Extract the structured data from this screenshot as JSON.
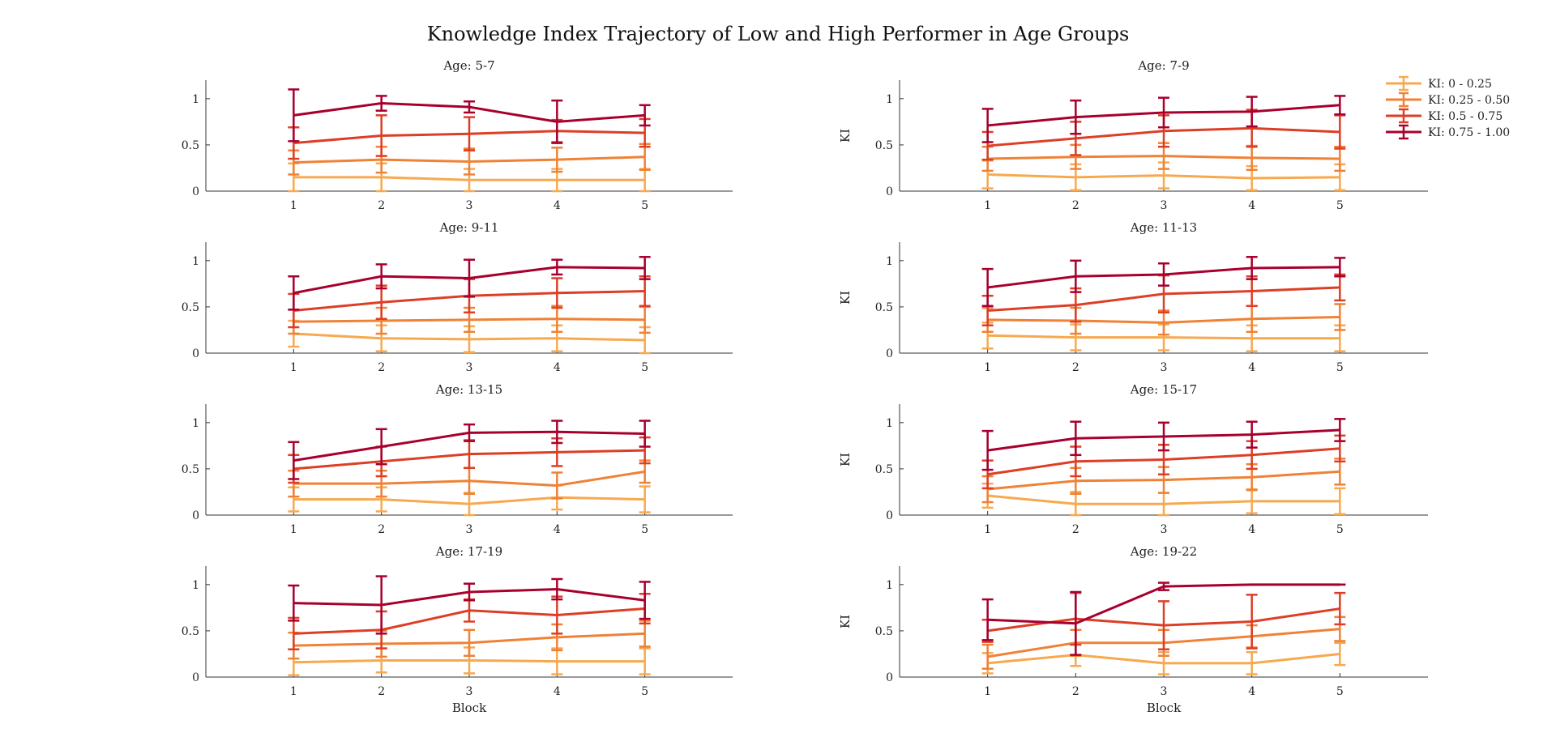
{
  "title": "Knowledge Index Trajectory of Low and High Performer in Age Groups",
  "legend": [
    {
      "label": "KI: 0 - 0.25",
      "color": "#F7A94F"
    },
    {
      "label": "KI: 0.25 - 0.50",
      "color": "#EF8236"
    },
    {
      "label": "KI: 0.5 - 0.75",
      "color": "#DC3F26"
    },
    {
      "label": "KI: 0.75 - 1.00",
      "color": "#A8002E"
    }
  ],
  "chart_data": [
    {
      "type": "line",
      "title": "Age: 5-7",
      "xlabel": "",
      "ylabel": "",
      "x": [
        1,
        2,
        3,
        4,
        5
      ],
      "xlim": [
        0,
        6
      ],
      "ylim": [
        0,
        1.2
      ],
      "yticks": [
        0,
        0.5,
        1
      ],
      "series": [
        {
          "name": "KI: 0 - 0.25",
          "values": [
            0.15,
            0.15,
            0.12,
            0.12,
            0.12
          ],
          "errors": [
            0.15,
            0.15,
            0.12,
            0.12,
            0.12
          ]
        },
        {
          "name": "KI: 0.25 - 0.50",
          "values": [
            0.31,
            0.34,
            0.32,
            0.34,
            0.37
          ],
          "errors": [
            0.13,
            0.14,
            0.14,
            0.13,
            0.14
          ]
        },
        {
          "name": "KI: 0.5 - 0.75",
          "values": [
            0.52,
            0.6,
            0.62,
            0.65,
            0.63
          ],
          "errors": [
            0.17,
            0.22,
            0.18,
            0.12,
            0.15
          ]
        },
        {
          "name": "KI: 0.75 - 1.00",
          "values": [
            0.82,
            0.95,
            0.91,
            0.75,
            0.82
          ],
          "errors": [
            0.28,
            0.08,
            0.06,
            0.23,
            0.11
          ]
        }
      ]
    },
    {
      "type": "line",
      "title": "Age: 7-9",
      "xlabel": "",
      "ylabel": "KI",
      "x": [
        1,
        2,
        3,
        4,
        5
      ],
      "xlim": [
        0,
        6
      ],
      "ylim": [
        0,
        1.2
      ],
      "yticks": [
        0,
        0.5,
        1
      ],
      "series": [
        {
          "name": "KI: 0 - 0.25",
          "values": [
            0.18,
            0.15,
            0.17,
            0.14,
            0.15
          ],
          "errors": [
            0.15,
            0.14,
            0.14,
            0.13,
            0.14
          ]
        },
        {
          "name": "KI: 0.25 - 0.50",
          "values": [
            0.35,
            0.37,
            0.38,
            0.36,
            0.35
          ],
          "errors": [
            0.13,
            0.13,
            0.14,
            0.13,
            0.13
          ]
        },
        {
          "name": "KI: 0.5 - 0.75",
          "values": [
            0.49,
            0.57,
            0.65,
            0.68,
            0.64
          ],
          "errors": [
            0.15,
            0.18,
            0.17,
            0.2,
            0.18
          ]
        },
        {
          "name": "KI: 0.75 - 1.00",
          "values": [
            0.71,
            0.8,
            0.85,
            0.86,
            0.93
          ],
          "errors": [
            0.18,
            0.18,
            0.16,
            0.16,
            0.1
          ]
        }
      ]
    },
    {
      "type": "line",
      "title": "Age: 9-11",
      "xlabel": "",
      "ylabel": "",
      "x": [
        1,
        2,
        3,
        4,
        5
      ],
      "xlim": [
        0,
        6
      ],
      "ylim": [
        0,
        1.2
      ],
      "yticks": [
        0,
        0.5,
        1
      ],
      "series": [
        {
          "name": "KI: 0 - 0.25",
          "values": [
            0.21,
            0.16,
            0.15,
            0.16,
            0.14
          ],
          "errors": [
            0.14,
            0.14,
            0.14,
            0.14,
            0.14
          ]
        },
        {
          "name": "KI: 0.25 - 0.50",
          "values": [
            0.34,
            0.35,
            0.36,
            0.37,
            0.36
          ],
          "errors": [
            0.13,
            0.14,
            0.13,
            0.14,
            0.14
          ]
        },
        {
          "name": "KI: 0.5 - 0.75",
          "values": [
            0.46,
            0.55,
            0.62,
            0.65,
            0.67
          ],
          "errors": [
            0.18,
            0.18,
            0.18,
            0.16,
            0.16
          ]
        },
        {
          "name": "KI: 0.75 - 1.00",
          "values": [
            0.65,
            0.83,
            0.81,
            0.93,
            0.92
          ],
          "errors": [
            0.18,
            0.13,
            0.2,
            0.08,
            0.12
          ]
        }
      ]
    },
    {
      "type": "line",
      "title": "Age: 11-13",
      "xlabel": "",
      "ylabel": "KI",
      "x": [
        1,
        2,
        3,
        4,
        5
      ],
      "xlim": [
        0,
        6
      ],
      "ylim": [
        0,
        1.2
      ],
      "yticks": [
        0,
        0.5,
        1
      ],
      "series": [
        {
          "name": "KI: 0 - 0.25",
          "values": [
            0.19,
            0.17,
            0.17,
            0.16,
            0.16
          ],
          "errors": [
            0.14,
            0.14,
            0.14,
            0.14,
            0.14
          ]
        },
        {
          "name": "KI: 0.25 - 0.50",
          "values": [
            0.36,
            0.35,
            0.33,
            0.37,
            0.39
          ],
          "errors": [
            0.13,
            0.14,
            0.13,
            0.14,
            0.14
          ]
        },
        {
          "name": "KI: 0.5 - 0.75",
          "values": [
            0.46,
            0.52,
            0.64,
            0.67,
            0.71
          ],
          "errors": [
            0.16,
            0.18,
            0.2,
            0.16,
            0.14
          ]
        },
        {
          "name": "KI: 0.75 - 1.00",
          "values": [
            0.71,
            0.83,
            0.85,
            0.92,
            0.93
          ],
          "errors": [
            0.2,
            0.17,
            0.12,
            0.12,
            0.1
          ]
        }
      ]
    },
    {
      "type": "line",
      "title": "Age: 13-15",
      "xlabel": "",
      "ylabel": "",
      "x": [
        1,
        2,
        3,
        4,
        5
      ],
      "xlim": [
        0,
        6
      ],
      "ylim": [
        0,
        1.2
      ],
      "yticks": [
        0,
        0.5,
        1
      ],
      "series": [
        {
          "name": "KI: 0 - 0.25",
          "values": [
            0.17,
            0.17,
            0.12,
            0.19,
            0.17
          ],
          "errors": [
            0.13,
            0.13,
            0.12,
            0.13,
            0.14
          ]
        },
        {
          "name": "KI: 0.25 - 0.50",
          "values": [
            0.34,
            0.34,
            0.37,
            0.32,
            0.47
          ],
          "errors": [
            0.14,
            0.14,
            0.14,
            0.14,
            0.12
          ]
        },
        {
          "name": "KI: 0.5 - 0.75",
          "values": [
            0.5,
            0.58,
            0.66,
            0.68,
            0.7
          ],
          "errors": [
            0.15,
            0.16,
            0.15,
            0.15,
            0.14
          ]
        },
        {
          "name": "KI: 0.75 - 1.00",
          "values": [
            0.59,
            0.74,
            0.89,
            0.9,
            0.88
          ],
          "errors": [
            0.2,
            0.19,
            0.09,
            0.12,
            0.14
          ]
        }
      ]
    },
    {
      "type": "line",
      "title": "Age: 15-17",
      "xlabel": "",
      "ylabel": "KI",
      "x": [
        1,
        2,
        3,
        4,
        5
      ],
      "xlim": [
        0,
        6
      ],
      "ylim": [
        0,
        1.2
      ],
      "yticks": [
        0,
        0.5,
        1
      ],
      "series": [
        {
          "name": "KI: 0 - 0.25",
          "values": [
            0.21,
            0.12,
            0.12,
            0.15,
            0.15
          ],
          "errors": [
            0.13,
            0.13,
            0.12,
            0.13,
            0.14
          ]
        },
        {
          "name": "KI: 0.25 - 0.50",
          "values": [
            0.28,
            0.37,
            0.38,
            0.41,
            0.47
          ],
          "errors": [
            0.14,
            0.14,
            0.14,
            0.14,
            0.14
          ]
        },
        {
          "name": "KI: 0.5 - 0.75",
          "values": [
            0.44,
            0.58,
            0.6,
            0.65,
            0.72
          ],
          "errors": [
            0.15,
            0.16,
            0.16,
            0.15,
            0.14
          ]
        },
        {
          "name": "KI: 0.75 - 1.00",
          "values": [
            0.7,
            0.83,
            0.85,
            0.87,
            0.92
          ],
          "errors": [
            0.21,
            0.18,
            0.15,
            0.14,
            0.12
          ]
        }
      ]
    },
    {
      "type": "line",
      "title": "Age: 17-19",
      "xlabel": "Block",
      "ylabel": "",
      "x": [
        1,
        2,
        3,
        4,
        5
      ],
      "xlim": [
        0,
        6
      ],
      "ylim": [
        0,
        1.2
      ],
      "yticks": [
        0,
        0.5,
        1
      ],
      "series": [
        {
          "name": "KI: 0 - 0.25",
          "values": [
            0.16,
            0.18,
            0.18,
            0.17,
            0.17
          ],
          "errors": [
            0.14,
            0.13,
            0.14,
            0.14,
            0.14
          ]
        },
        {
          "name": "KI: 0.25 - 0.50",
          "values": [
            0.34,
            0.36,
            0.37,
            0.43,
            0.47
          ],
          "errors": [
            0.14,
            0.14,
            0.14,
            0.14,
            0.14
          ]
        },
        {
          "name": "KI: 0.5 - 0.75",
          "values": [
            0.47,
            0.51,
            0.72,
            0.67,
            0.74
          ],
          "errors": [
            0.17,
            0.2,
            0.12,
            0.2,
            0.16
          ]
        },
        {
          "name": "KI: 0.75 - 1.00",
          "values": [
            0.8,
            0.78,
            0.92,
            0.95,
            0.83
          ],
          "errors": [
            0.19,
            0.31,
            0.09,
            0.11,
            0.2
          ]
        }
      ]
    },
    {
      "type": "line",
      "title": "Age: 19-22",
      "xlabel": "Block",
      "ylabel": "KI",
      "x": [
        1,
        2,
        3,
        4,
        5
      ],
      "xlim": [
        0,
        6
      ],
      "ylim": [
        0,
        1.2
      ],
      "yticks": [
        0,
        0.5,
        1
      ],
      "series": [
        {
          "name": "KI: 0 - 0.25",
          "values": [
            0.15,
            0.24,
            0.15,
            0.15,
            0.25
          ],
          "errors": [
            0.11,
            0.12,
            0.12,
            0.12,
            0.12
          ]
        },
        {
          "name": "KI: 0.25 - 0.50",
          "values": [
            0.22,
            0.37,
            0.37,
            0.44,
            0.52
          ],
          "errors": [
            0.13,
            0.14,
            0.14,
            0.12,
            0.13
          ]
        },
        {
          "name": "KI: 0.5 - 0.75",
          "values": [
            0.5,
            0.63,
            0.56,
            0.6,
            0.74
          ],
          "errors": [
            0.12,
            0.28,
            0.26,
            0.29,
            0.17
          ]
        },
        {
          "name": "KI: 0.75 - 1.00",
          "values": [
            0.62,
            0.58,
            0.98,
            1.0,
            1.0
          ],
          "errors": [
            0.22,
            0.34,
            0.04,
            0.0,
            0.0
          ]
        }
      ]
    }
  ]
}
